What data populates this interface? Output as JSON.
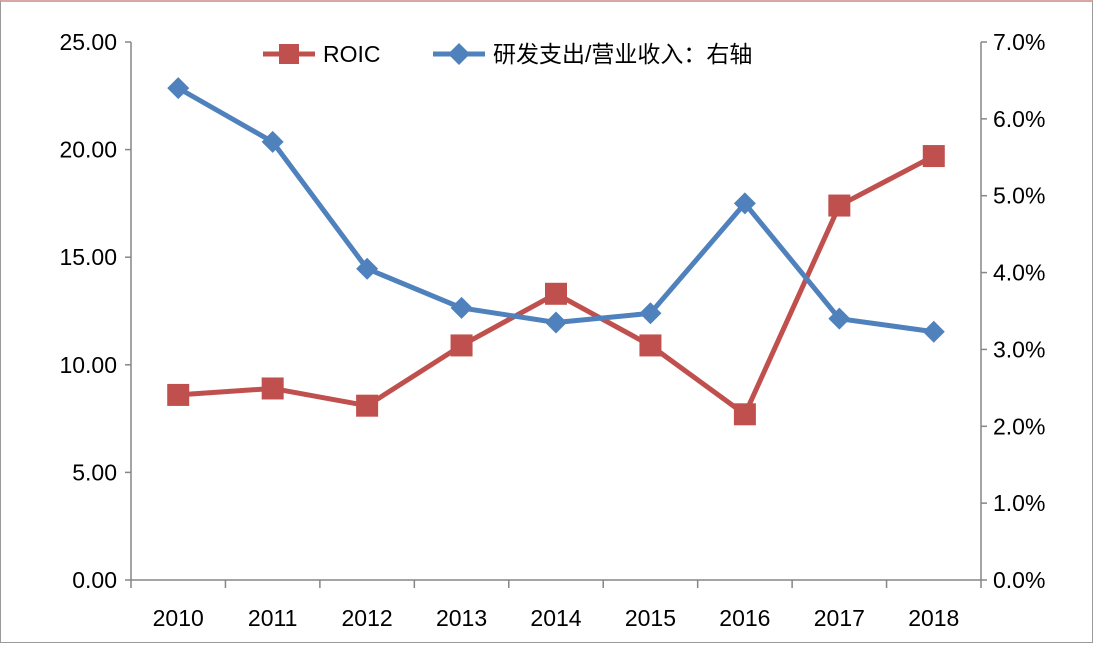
{
  "chart_data": {
    "type": "line",
    "categories": [
      "2010",
      "2011",
      "2012",
      "2013",
      "2014",
      "2015",
      "2016",
      "2017",
      "2018"
    ],
    "series": [
      {
        "name": "ROIC",
        "axis": "left",
        "color": "#c0504d",
        "marker": "square",
        "values": [
          8.6,
          8.9,
          8.1,
          10.9,
          13.3,
          10.9,
          7.7,
          17.4,
          19.7
        ]
      },
      {
        "name": "研发支出/营业收入：右轴",
        "axis": "right",
        "color": "#4f81bd",
        "marker": "diamond",
        "values": [
          0.064,
          0.057,
          0.0405,
          0.0354,
          0.0335,
          0.0347,
          0.049,
          0.034,
          0.0323
        ]
      }
    ],
    "left_axis": {
      "ylim": [
        0,
        25
      ],
      "ticks": [
        0,
        5,
        10,
        15,
        20,
        25
      ],
      "tick_labels": [
        "0.00",
        "5.00",
        "10.00",
        "15.00",
        "20.00",
        "25.00"
      ]
    },
    "right_axis": {
      "ylim": [
        0,
        0.07
      ],
      "ticks": [
        0,
        0.01,
        0.02,
        0.03,
        0.04,
        0.05,
        0.06,
        0.07
      ],
      "tick_labels": [
        "0.0%",
        "1.0%",
        "2.0%",
        "3.0%",
        "4.0%",
        "5.0%",
        "6.0%",
        "7.0%"
      ]
    },
    "grid": false,
    "legend_position": "top"
  }
}
